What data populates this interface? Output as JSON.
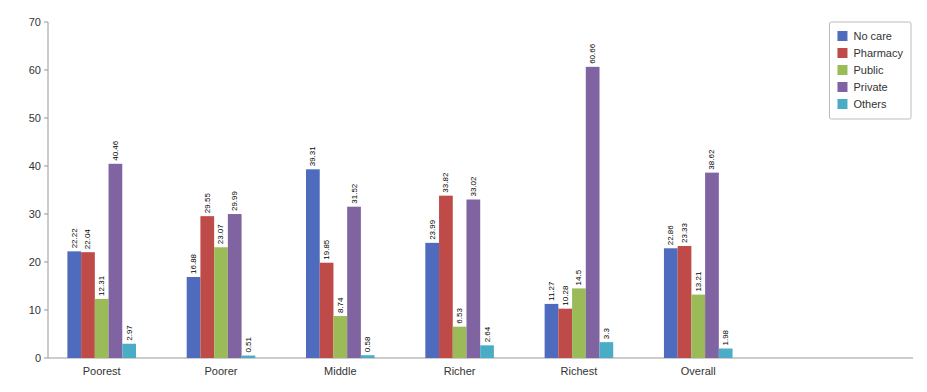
{
  "chart_data": {
    "type": "bar",
    "categories": [
      "Poorest",
      "Poorer",
      "Middle",
      "Richer",
      "Richest",
      "Overall"
    ],
    "series": [
      {
        "name": "No care",
        "color": "#4f6bbd",
        "values": [
          22.22,
          16.88,
          39.31,
          23.99,
          11.27,
          22.86
        ]
      },
      {
        "name": "Pharmacy",
        "color": "#be4b48",
        "values": [
          22.04,
          29.55,
          19.85,
          33.82,
          10.28,
          23.33
        ]
      },
      {
        "name": "Public",
        "color": "#9bbb59",
        "values": [
          12.31,
          23.07,
          8.74,
          6.53,
          14.5,
          13.21
        ]
      },
      {
        "name": "Private",
        "color": "#8064a2",
        "values": [
          40.46,
          29.99,
          31.52,
          33.02,
          60.66,
          38.62
        ]
      },
      {
        "name": "Others",
        "color": "#4bacc6",
        "values": [
          2.97,
          0.51,
          0.58,
          2.64,
          3.3,
          1.98
        ]
      }
    ],
    "ylim": [
      0,
      70
    ],
    "yticks": [
      0,
      10,
      20,
      30,
      40,
      50,
      60,
      70
    ],
    "grid": false,
    "legend": "upper right",
    "data_labels": true
  }
}
